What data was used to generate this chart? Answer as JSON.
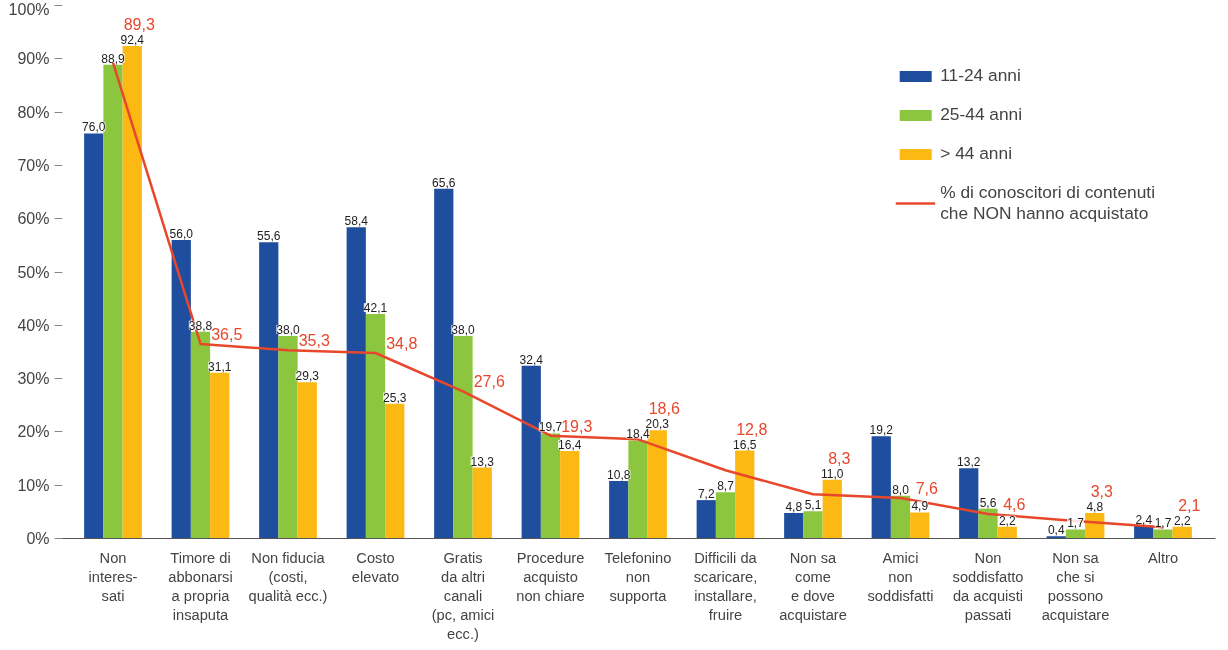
{
  "chart_data": {
    "type": "bar",
    "categories": [
      "Non\ninteres-\nsati",
      "Timore di\nabbonarsi\na propria\ninsaputa",
      "Non fiducia\n(costi,\nqualità ecc.)",
      "Costo\nelevato",
      "Gratis\nda altri\ncanali\n(pc, amici\necc.)",
      "Procedure\nacquisto\nnon chiare",
      "Telefonino\nnon\nsupporta",
      "Difficili da\nscaricare,\ninstallare,\nfruire",
      "Non sa\ncome\ne dove\nacquistare",
      "Amici\nnon\nsoddisfatti",
      "Non\nsoddisfatto\nda acquisti\npassati",
      "Non sa\nche si\npossono\nacquistare",
      "Altro"
    ],
    "series": [
      {
        "name": "11-24 anni",
        "color": "#1f4e9e",
        "values": [
          76.0,
          56.0,
          55.6,
          58.4,
          65.6,
          32.4,
          10.8,
          7.2,
          4.8,
          19.2,
          13.2,
          0.4,
          2.4
        ],
        "value_labels": [
          "76,0",
          "56,0",
          "55,6",
          "58,4",
          "65,6",
          "32,4",
          "10,8",
          "7,2",
          "4,8",
          "19,2",
          "13,2",
          "0,4",
          "2,4"
        ]
      },
      {
        "name": "25-44 anni",
        "color": "#8cc63f",
        "values": [
          88.9,
          38.8,
          38.0,
          42.1,
          38.0,
          19.7,
          18.4,
          8.7,
          5.1,
          8.0,
          5.6,
          1.7,
          1.7
        ],
        "value_labels": [
          "88,9",
          "38,8",
          "38,0",
          "42,1",
          "38,0",
          "19,7",
          "18,4",
          "8,7",
          "5,1",
          "8,0",
          "5,6",
          "1,7",
          "1,7"
        ]
      },
      {
        "name": "> 44 anni",
        "color": "#fdb913",
        "values": [
          92.4,
          31.1,
          29.3,
          25.3,
          13.3,
          16.4,
          20.3,
          16.5,
          11.0,
          4.9,
          2.2,
          4.8,
          2.2
        ],
        "value_labels": [
          "92,4",
          "31,1",
          "29,3",
          "25,3",
          "13,3",
          "16,4",
          "20,3",
          "16,5",
          "11,0",
          "4,9",
          "2,2",
          "4,8",
          "2,2"
        ]
      },
      {
        "name": "% di conoscitori di contenuti\nche NON hanno acquistato",
        "type": "line",
        "color": "#e8472b",
        "values": [
          89.3,
          36.5,
          35.3,
          34.8,
          27.6,
          19.3,
          18.6,
          12.8,
          8.3,
          7.6,
          4.6,
          3.3,
          2.1
        ],
        "value_labels": [
          "89,3",
          "36,5",
          "35,3",
          "34,8",
          "27,6",
          "19,3",
          "18,6",
          "12,8",
          "8,3",
          "7,6",
          "4,6",
          "3,3",
          "2,1"
        ]
      }
    ],
    "ylim": [
      0,
      100
    ],
    "yticks": [
      {
        "value": 0,
        "label": "0%"
      },
      {
        "value": 10,
        "label": "10%"
      },
      {
        "value": 20,
        "label": "20%"
      },
      {
        "value": 30,
        "label": "30%"
      },
      {
        "value": 40,
        "label": "40%"
      },
      {
        "value": 50,
        "label": "50%"
      },
      {
        "value": 60,
        "label": "60%"
      },
      {
        "value": 70,
        "label": "70%"
      },
      {
        "value": 80,
        "label": "80%"
      },
      {
        "value": 90,
        "label": "90%"
      },
      {
        "value": 100,
        "label": "100%"
      }
    ],
    "grid": false,
    "legend": "top right",
    "marker": "none",
    "line_style": "solid"
  }
}
